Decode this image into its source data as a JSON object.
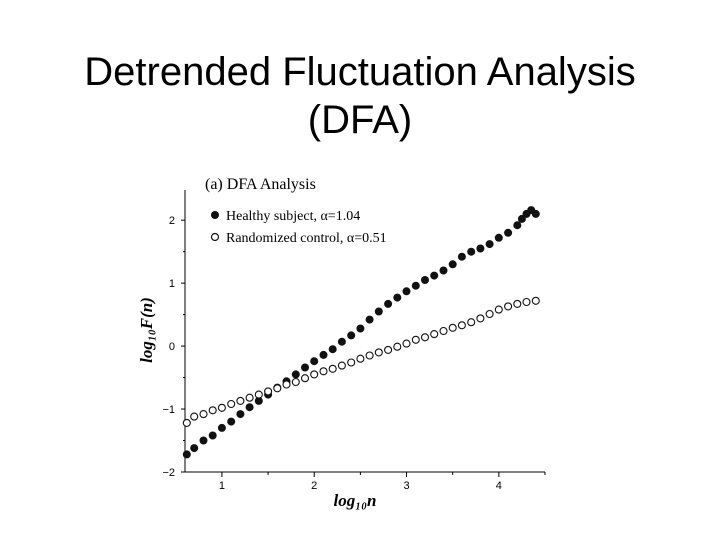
{
  "slide": {
    "title_line1": "Detrended Fluctuation Analysis",
    "title_line2": "(DFA)"
  },
  "chart_data": {
    "type": "scatter",
    "title": "(a)  DFA Analysis",
    "xlabel": "log₁₀n",
    "ylabel": "log₁₀F(n)",
    "xlim": [
      0.6,
      4.5
    ],
    "ylim": [
      -2,
      2.4
    ],
    "xticks": [
      1,
      2,
      3,
      4
    ],
    "xtick_labels": [
      "1",
      "2",
      "3",
      "4"
    ],
    "yticks": [
      -2,
      -1,
      0,
      1,
      2
    ],
    "ytick_labels": [
      "−2",
      "−1",
      "0",
      "1",
      "2"
    ],
    "grid": false,
    "legend_position": "top-left",
    "series": [
      {
        "name": "Healthy subject, α=1.04",
        "marker": "filled-circle",
        "color": "#111111",
        "x": [
          0.62,
          0.7,
          0.8,
          0.9,
          1.0,
          1.1,
          1.2,
          1.3,
          1.4,
          1.5,
          1.6,
          1.7,
          1.8,
          1.9,
          2.0,
          2.1,
          2.2,
          2.3,
          2.4,
          2.5,
          2.6,
          2.7,
          2.8,
          2.9,
          3.0,
          3.1,
          3.2,
          3.3,
          3.4,
          3.5,
          3.6,
          3.7,
          3.8,
          3.9,
          4.0,
          4.1,
          4.2,
          4.25,
          4.3,
          4.35,
          4.4
        ],
        "y": [
          -1.72,
          -1.62,
          -1.5,
          -1.42,
          -1.3,
          -1.2,
          -1.08,
          -0.97,
          -0.87,
          -0.77,
          -0.66,
          -0.56,
          -0.45,
          -0.34,
          -0.24,
          -0.14,
          -0.05,
          0.07,
          0.17,
          0.28,
          0.42,
          0.55,
          0.67,
          0.77,
          0.87,
          0.96,
          1.05,
          1.12,
          1.2,
          1.3,
          1.42,
          1.5,
          1.55,
          1.62,
          1.72,
          1.8,
          1.92,
          2.02,
          2.1,
          2.16,
          2.1
        ]
      },
      {
        "name": "Randomized control, α=0.51",
        "marker": "open-circle",
        "color": "#111111",
        "x": [
          0.62,
          0.7,
          0.8,
          0.9,
          1.0,
          1.1,
          1.2,
          1.3,
          1.4,
          1.5,
          1.6,
          1.7,
          1.8,
          1.9,
          2.0,
          2.1,
          2.2,
          2.3,
          2.4,
          2.5,
          2.6,
          2.7,
          2.8,
          2.9,
          3.0,
          3.1,
          3.2,
          3.3,
          3.4,
          3.5,
          3.6,
          3.7,
          3.8,
          3.9,
          4.0,
          4.1,
          4.2,
          4.3,
          4.4
        ],
        "y": [
          -1.22,
          -1.12,
          -1.08,
          -1.02,
          -0.98,
          -0.92,
          -0.87,
          -0.82,
          -0.77,
          -0.72,
          -0.67,
          -0.61,
          -0.57,
          -0.51,
          -0.45,
          -0.4,
          -0.36,
          -0.31,
          -0.26,
          -0.2,
          -0.15,
          -0.1,
          -0.06,
          -0.01,
          0.04,
          0.1,
          0.14,
          0.19,
          0.24,
          0.29,
          0.33,
          0.38,
          0.44,
          0.51,
          0.58,
          0.63,
          0.67,
          0.7,
          0.72
        ]
      }
    ]
  }
}
